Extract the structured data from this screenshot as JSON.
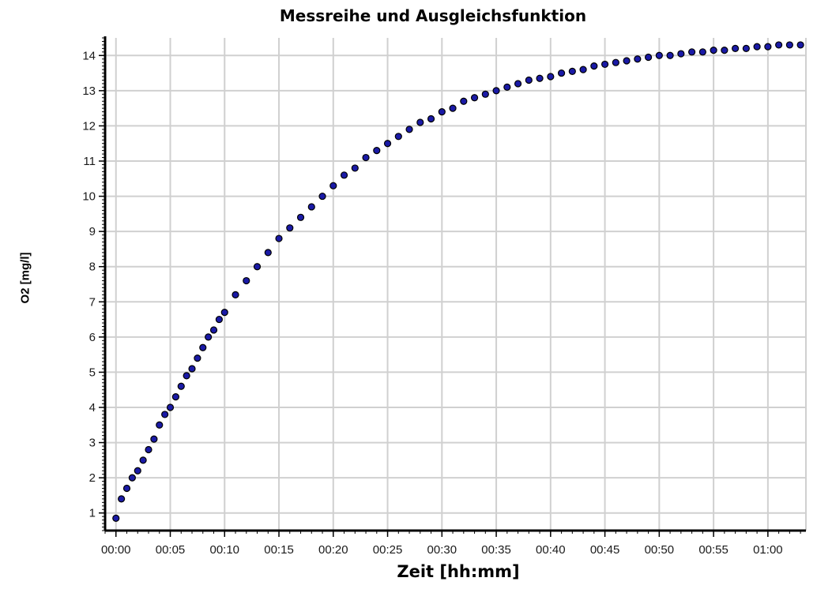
{
  "chart_data": {
    "type": "scatter",
    "title": "Messreihe und Ausgleichsfunktion",
    "xlabel": "Zeit [hh:mm]",
    "ylabel": "O2 [mg/l]",
    "x_unit": "minutes",
    "xlim": [
      -1,
      63.5
    ],
    "ylim": [
      0.5,
      14.5
    ],
    "x_ticks": [
      0,
      5,
      10,
      15,
      20,
      25,
      30,
      35,
      40,
      45,
      50,
      55,
      60
    ],
    "x_tick_labels": [
      "00:00",
      "00:05",
      "00:10",
      "00:15",
      "00:20",
      "00:25",
      "00:30",
      "00:35",
      "00:40",
      "00:45",
      "00:50",
      "00:55",
      "01:00"
    ],
    "y_ticks": [
      1,
      2,
      3,
      4,
      5,
      6,
      7,
      8,
      9,
      10,
      11,
      12,
      13,
      14
    ],
    "y_tick_labels": [
      "1",
      "2",
      "3",
      "4",
      "5",
      "6",
      "7",
      "8",
      "9",
      "10",
      "11",
      "12",
      "13",
      "14"
    ],
    "grid": true,
    "legend": "none",
    "marker_color": "#1a1aa6",
    "marker_edge_color": "#000000",
    "series": [
      {
        "x": [
          0,
          0.5,
          1,
          1.5,
          2,
          2.5,
          3,
          3.5,
          4,
          4.5,
          5,
          5.5,
          6,
          6.5,
          7,
          7.5,
          8,
          8.5,
          9,
          9.5,
          10,
          11,
          12,
          13,
          14,
          15,
          16,
          17,
          18,
          19,
          20,
          21,
          22,
          23,
          24,
          25,
          26,
          27,
          28,
          29,
          30,
          31,
          32,
          33,
          34,
          35,
          36,
          37,
          38,
          39,
          40,
          41,
          42,
          43,
          44,
          45,
          46,
          47,
          48,
          49,
          50,
          51,
          52,
          53,
          54,
          55,
          56,
          57,
          58,
          59,
          60,
          61,
          62,
          63
        ],
        "y": [
          0.85,
          1.4,
          1.7,
          2.0,
          2.2,
          2.5,
          2.8,
          3.1,
          3.5,
          3.8,
          4.0,
          4.3,
          4.6,
          4.9,
          5.1,
          5.4,
          5.7,
          6.0,
          6.2,
          6.5,
          6.7,
          7.2,
          7.6,
          8.0,
          8.4,
          8.8,
          9.1,
          9.4,
          9.7,
          10.0,
          10.3,
          10.6,
          10.8,
          11.1,
          11.3,
          11.5,
          11.7,
          11.9,
          12.1,
          12.2,
          12.4,
          12.5,
          12.7,
          12.8,
          12.9,
          13.0,
          13.1,
          13.2,
          13.3,
          13.35,
          13.4,
          13.5,
          13.55,
          13.6,
          13.7,
          13.75,
          13.8,
          13.85,
          13.9,
          13.95,
          14.0,
          14.0,
          14.05,
          14.1,
          14.1,
          14.15,
          14.15,
          14.2,
          14.2,
          14.25,
          14.25,
          14.3,
          14.3,
          14.3
        ]
      }
    ]
  }
}
